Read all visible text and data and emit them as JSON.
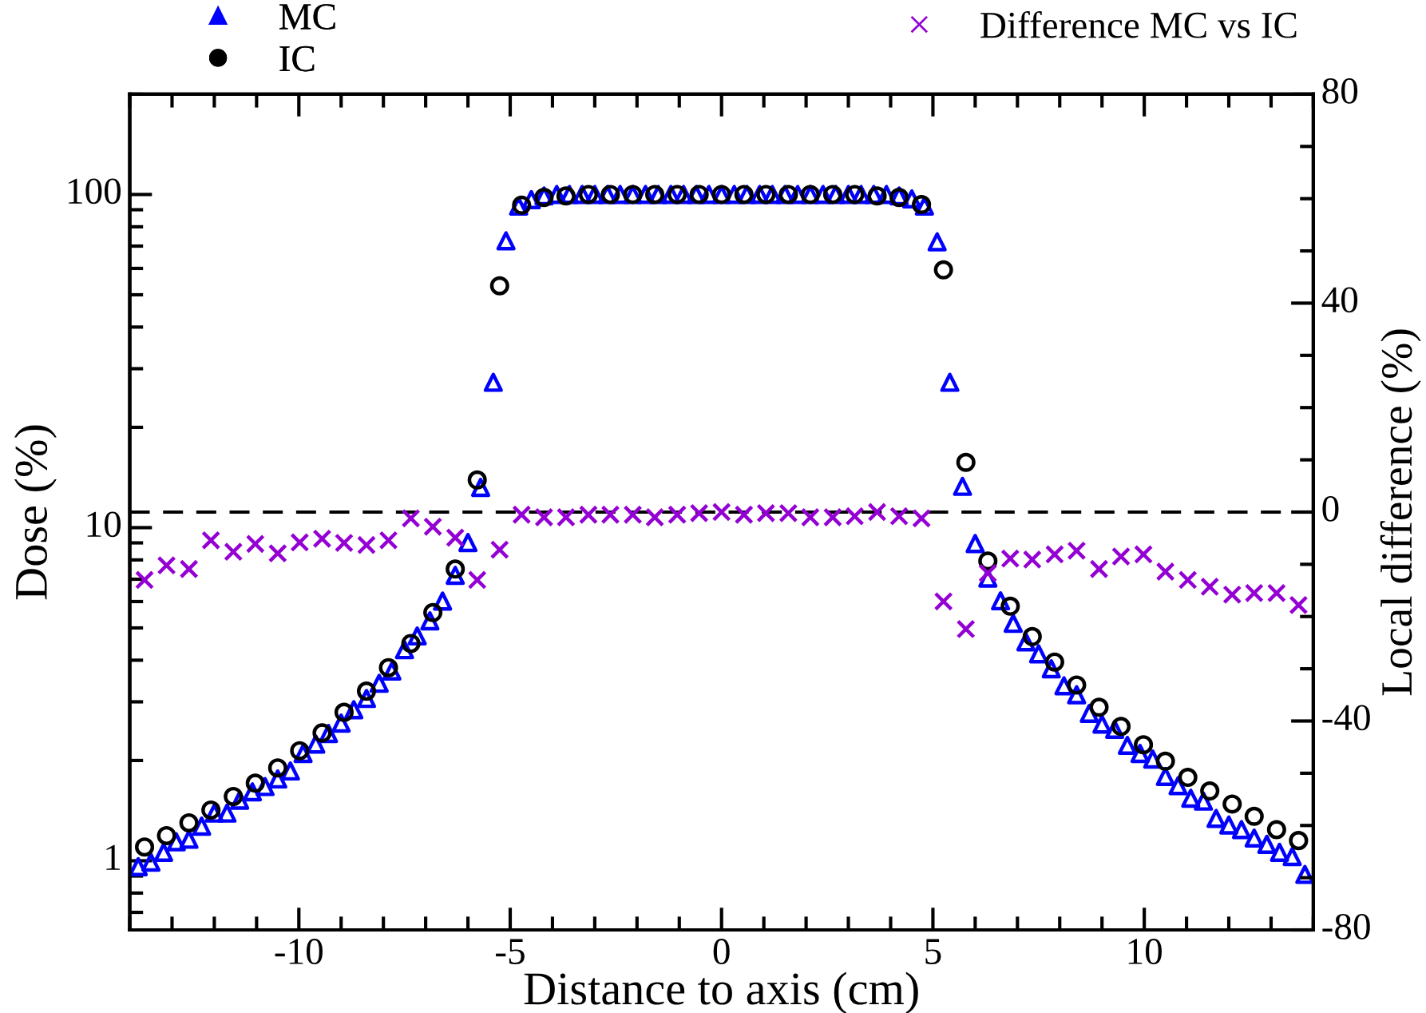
{
  "chart_data": {
    "type": "scatter",
    "xlabel": "Distance to axis (cm)",
    "ylabel": "Dose (%)",
    "y2label": "Local difference (%)",
    "log": "y",
    "legend": "top",
    "grid": false,
    "xlim": [
      -14,
      14
    ],
    "xticks": [
      {
        "value": -14,
        "label": null
      },
      {
        "value": -13,
        "label": null
      },
      {
        "value": -12,
        "label": null
      },
      {
        "value": -11,
        "label": null
      },
      -10,
      {
        "value": -9,
        "label": null
      },
      {
        "value": -8,
        "label": null
      },
      {
        "value": -7,
        "label": null
      },
      {
        "value": -6,
        "label": null
      },
      -5,
      {
        "value": -4,
        "label": null
      },
      {
        "value": -3,
        "label": null
      },
      {
        "value": -2,
        "label": null
      },
      {
        "value": -1,
        "label": null
      },
      0,
      {
        "value": 1,
        "label": null
      },
      {
        "value": 2,
        "label": null
      },
      {
        "value": 3,
        "label": null
      },
      {
        "value": 4,
        "label": null
      },
      5,
      {
        "value": 6,
        "label": null
      },
      {
        "value": 7,
        "label": null
      },
      {
        "value": 8,
        "label": null
      },
      {
        "value": 9,
        "label": null
      },
      10,
      {
        "value": 11,
        "label": null
      },
      {
        "value": 12,
        "label": null
      },
      {
        "value": 13,
        "label": null
      },
      {
        "value": 14,
        "label": null
      }
    ],
    "ylim": [
      0.62,
      200
    ],
    "yticks": [
      {
        "value": 0.7,
        "label": null
      },
      {
        "value": 0.8,
        "label": null
      },
      {
        "value": 0.9,
        "label": null
      },
      1,
      {
        "value": 2,
        "label": null
      },
      {
        "value": 3,
        "label": null
      },
      {
        "value": 4,
        "label": null
      },
      {
        "value": 5,
        "label": null
      },
      {
        "value": 6,
        "label": null
      },
      {
        "value": 7,
        "label": null
      },
      {
        "value": 8,
        "label": null
      },
      {
        "value": 9,
        "label": null
      },
      10,
      {
        "value": 20,
        "label": null
      },
      {
        "value": 30,
        "label": null
      },
      {
        "value": 40,
        "label": null
      },
      {
        "value": 50,
        "label": null
      },
      {
        "value": 60,
        "label": null
      },
      {
        "value": 70,
        "label": null
      },
      {
        "value": 80,
        "label": null
      },
      {
        "value": 90,
        "label": null
      },
      100,
      {
        "value": 200,
        "label": null
      }
    ],
    "y2lim": [
      -80,
      80
    ],
    "y2ticks": [
      -80,
      {
        "value": -70,
        "label": null
      },
      {
        "value": -60,
        "label": null
      },
      {
        "value": -50,
        "label": null
      },
      -40,
      {
        "value": -30,
        "label": null
      },
      {
        "value": -20,
        "label": null
      },
      {
        "value": -10,
        "label": null
      },
      0,
      {
        "value": 10,
        "label": null
      },
      {
        "value": 20,
        "label": null
      },
      {
        "value": 30,
        "label": null
      },
      40,
      {
        "value": 50,
        "label": null
      },
      {
        "value": 60,
        "label": null
      },
      {
        "value": 70,
        "label": null
      },
      80
    ],
    "ref_lines": [
      {
        "axis": "y2",
        "value": 0,
        "color": "#000000",
        "line_style": "dashed"
      }
    ],
    "series": [
      {
        "name": "MC",
        "color": "#0000ff",
        "marker": "triangle",
        "x": [
          -13.8,
          -13.5,
          -13.2,
          -12.9,
          -12.6,
          -12.3,
          -12.0,
          -11.7,
          -11.4,
          -11.1,
          -10.8,
          -10.5,
          -10.2,
          -9.9,
          -9.6,
          -9.3,
          -9.0,
          -8.7,
          -8.4,
          -8.1,
          -7.8,
          -7.5,
          -7.2,
          -6.9,
          -6.6,
          -6.3,
          -6.0,
          -5.7,
          -5.4,
          -5.1,
          -4.8,
          -4.5,
          -4.2,
          -3.9,
          -3.6,
          -3.3,
          -3.0,
          -2.7,
          -2.4,
          -2.1,
          -1.8,
          -1.5,
          -1.2,
          -0.9,
          -0.6,
          -0.3,
          0,
          0.3,
          0.6,
          0.9,
          1.2,
          1.5,
          1.8,
          2.1,
          2.4,
          2.7,
          3.0,
          3.3,
          3.6,
          3.9,
          4.2,
          4.5,
          4.8,
          5.1,
          5.4,
          5.7,
          6.0,
          6.3,
          6.6,
          6.9,
          7.2,
          7.5,
          7.8,
          8.1,
          8.4,
          8.7,
          9.0,
          9.3,
          9.6,
          9.9,
          10.2,
          10.5,
          10.8,
          11.1,
          11.4,
          11.7,
          12.0,
          12.3,
          12.6,
          12.9,
          13.2,
          13.5,
          13.8
        ],
        "values": [
          0.96,
          0.99,
          1.06,
          1.14,
          1.16,
          1.27,
          1.39,
          1.39,
          1.52,
          1.61,
          1.67,
          1.76,
          1.86,
          2.1,
          2.24,
          2.41,
          2.59,
          2.84,
          3.07,
          3.41,
          3.71,
          4.3,
          4.73,
          5.25,
          6.02,
          7.19,
          9.02,
          13.2,
          27.3,
          72.6,
          92.3,
          96.5,
          99,
          100,
          100,
          100,
          100,
          100,
          100,
          100,
          100,
          100,
          100,
          100,
          100,
          100,
          100,
          100,
          100,
          100,
          100,
          100,
          100,
          100,
          100,
          100,
          100,
          100,
          100,
          100,
          99,
          97,
          92.3,
          72.1,
          27.3,
          13.3,
          8.96,
          7.05,
          6.03,
          5.16,
          4.54,
          4.18,
          3.77,
          3.35,
          3.15,
          2.77,
          2.57,
          2.48,
          2.22,
          2.1,
          2.02,
          1.79,
          1.68,
          1.54,
          1.51,
          1.34,
          1.28,
          1.24,
          1.17,
          1.12,
          1.06,
          1.03,
          0.91
        ]
      },
      {
        "name": "IC",
        "color": "#000000",
        "marker": "circle",
        "x": [
          -13.65,
          -13.13,
          -12.6,
          -12.08,
          -11.55,
          -11.03,
          -10.5,
          -9.98,
          -9.45,
          -8.93,
          -8.4,
          -7.88,
          -7.35,
          -6.83,
          -6.3,
          -5.78,
          -5.25,
          -4.73,
          -4.2,
          -3.68,
          -3.15,
          -2.63,
          -2.1,
          -1.58,
          -1.05,
          -0.53,
          0,
          0.53,
          1.05,
          1.58,
          2.1,
          2.63,
          3.15,
          3.68,
          4.2,
          4.73,
          5.25,
          5.78,
          6.3,
          6.83,
          7.35,
          7.88,
          8.4,
          8.93,
          9.45,
          9.98,
          10.5,
          11.03,
          11.55,
          12.08,
          12.6,
          13.13,
          13.65
        ],
        "values": [
          1.1,
          1.19,
          1.3,
          1.42,
          1.56,
          1.71,
          1.9,
          2.14,
          2.42,
          2.79,
          3.23,
          3.8,
          4.49,
          5.56,
          7.51,
          13.9,
          53.2,
          92.9,
          98,
          99,
          100,
          100,
          100,
          100,
          100,
          100,
          100,
          100,
          100,
          100,
          100,
          100,
          100,
          99,
          98,
          93.3,
          59.4,
          15.7,
          7.94,
          5.81,
          4.71,
          3.95,
          3.37,
          2.89,
          2.53,
          2.23,
          1.99,
          1.78,
          1.62,
          1.48,
          1.36,
          1.24,
          1.15
        ]
      },
      {
        "name": "Difference MC vs IC",
        "color": "#9400d3",
        "marker": "cross",
        "axis": "y2",
        "x": [
          -13.65,
          -13.13,
          -12.6,
          -12.08,
          -11.55,
          -11.03,
          -10.5,
          -9.98,
          -9.45,
          -8.93,
          -8.4,
          -7.88,
          -7.35,
          -6.83,
          -6.3,
          -5.78,
          -5.25,
          -4.73,
          -4.2,
          -3.68,
          -3.15,
          -2.63,
          -2.1,
          -1.58,
          -1.05,
          -0.53,
          0,
          0.53,
          1.05,
          1.58,
          2.1,
          2.63,
          3.15,
          3.68,
          4.2,
          4.73,
          5.25,
          5.78,
          6.3,
          6.83,
          7.35,
          7.88,
          8.4,
          8.93,
          9.45,
          9.98,
          10.5,
          11.03,
          11.55,
          12.08,
          12.6,
          13.13,
          13.65
        ],
        "values": [
          -13.0,
          -10.2,
          -10.9,
          -5.4,
          -7.6,
          -6.1,
          -7.9,
          -5.8,
          -5.1,
          -5.9,
          -6.3,
          -5.4,
          -1.2,
          -2.8,
          -4.9,
          -13.0,
          -7.2,
          -0.5,
          -1.0,
          -1.0,
          -0.5,
          -0.5,
          -0.5,
          -1.0,
          -0.5,
          -0.2,
          0,
          -0.5,
          -0.2,
          -0.2,
          -1.0,
          -1.0,
          -0.8,
          0,
          -0.8,
          -1.2,
          -17.1,
          -22.4,
          -11.7,
          -8.9,
          -9.1,
          -8.1,
          -7.4,
          -10.9,
          -8.5,
          -8.1,
          -11.4,
          -13.0,
          -14.3,
          -15.8,
          -15.5,
          -15.5,
          -17.8
        ]
      }
    ]
  }
}
